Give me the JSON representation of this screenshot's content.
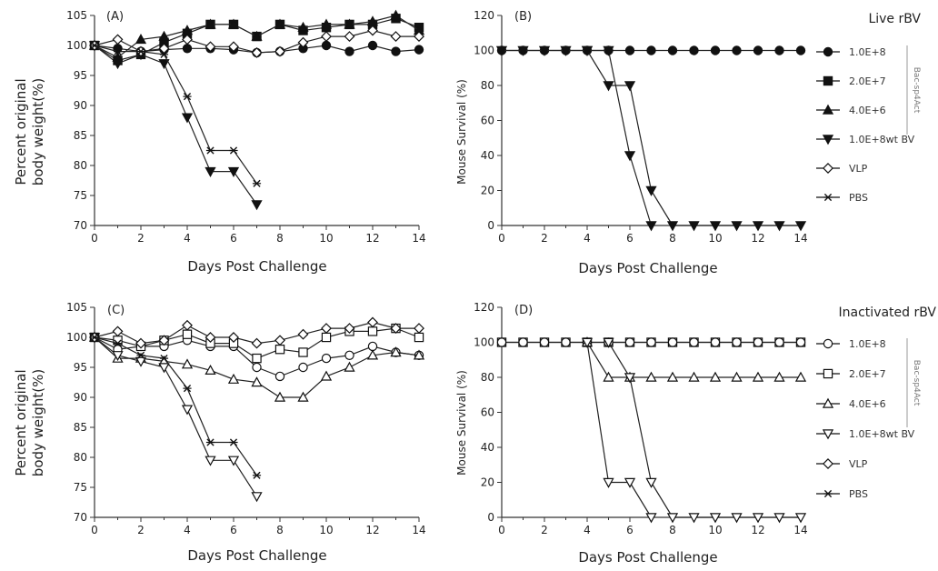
{
  "chart_data": [
    {
      "id": "A",
      "type": "line",
      "label": "(A)",
      "xlabel": "Days Post Challenge",
      "ylabel_lines": [
        "Percent original",
        "body weight(%)"
      ],
      "xlim": [
        0,
        14
      ],
      "ylim": [
        70,
        105
      ],
      "xticks": [
        0,
        2,
        4,
        6,
        8,
        10,
        12,
        14
      ],
      "yticks": [
        70,
        75,
        80,
        85,
        90,
        95,
        100,
        105
      ],
      "series": [
        {
          "marker": "circle-filled",
          "x": [
            0,
            1,
            2,
            3,
            4,
            5,
            6,
            7,
            8,
            9,
            10,
            11,
            12,
            13,
            14
          ],
          "y": [
            100,
            99.5,
            99,
            99.3,
            99.5,
            99.5,
            99.3,
            98.8,
            99,
            99.5,
            100,
            99,
            100,
            99,
            99.3
          ]
        },
        {
          "marker": "square-filled",
          "x": [
            0,
            1,
            2,
            3,
            4,
            5,
            6,
            7,
            8,
            9,
            10,
            11,
            12,
            13,
            14
          ],
          "y": [
            100,
            97.5,
            98.5,
            100.5,
            102,
            103.5,
            103.5,
            101.5,
            103.5,
            102.5,
            103,
            103.5,
            103.5,
            104.5,
            103
          ]
        },
        {
          "marker": "triangle-up-filled",
          "x": [
            0,
            1,
            2,
            3,
            4,
            5,
            6,
            7,
            8,
            9,
            10,
            11,
            12,
            13,
            14
          ],
          "y": [
            100,
            98,
            101,
            101.5,
            102.5,
            103.5,
            103.5,
            101.5,
            103.5,
            103,
            103.5,
            103.5,
            104,
            105,
            102.5
          ]
        },
        {
          "marker": "triangle-down-filled",
          "x": [
            0,
            1,
            2,
            3,
            4,
            5,
            6,
            7
          ],
          "y": [
            100,
            97,
            98.5,
            97,
            88,
            79,
            79,
            73.5
          ]
        },
        {
          "marker": "diamond-open",
          "x": [
            0,
            1,
            2,
            3,
            4,
            5,
            6,
            7,
            8,
            9,
            10,
            11,
            12,
            13,
            14
          ],
          "y": [
            100,
            101,
            99,
            99.5,
            101,
            99.8,
            99.8,
            98.8,
            99,
            100.5,
            101.5,
            101.5,
            102.5,
            101.5,
            101.5
          ]
        },
        {
          "marker": "star",
          "x": [
            0,
            1,
            2,
            3,
            4,
            5,
            6,
            7
          ],
          "y": [
            100,
            99,
            99,
            98.5,
            91.5,
            82.5,
            82.5,
            77
          ]
        }
      ]
    },
    {
      "id": "B",
      "type": "line",
      "label": "(B)",
      "xlabel": "Days Post Challenge",
      "ylabel_lines": [
        "Mouse Survival (%)"
      ],
      "xlim": [
        0,
        14
      ],
      "ylim": [
        0,
        120
      ],
      "xticks": [
        0,
        2,
        4,
        6,
        8,
        10,
        12,
        14
      ],
      "yticks": [
        0,
        20,
        40,
        60,
        80,
        100,
        120
      ],
      "series": [
        {
          "marker": "circle-filled",
          "x": [
            0,
            1,
            2,
            3,
            4,
            5,
            6,
            7,
            8,
            9,
            10,
            11,
            12,
            13,
            14
          ],
          "y": [
            100,
            100,
            100,
            100,
            100,
            100,
            100,
            100,
            100,
            100,
            100,
            100,
            100,
            100,
            100
          ]
        },
        {
          "marker": "triangle-down-filled",
          "x": [
            0,
            1,
            2,
            3,
            4,
            5,
            6,
            7,
            8,
            9,
            10,
            11,
            12,
            13,
            14
          ],
          "y": [
            100,
            100,
            100,
            100,
            100,
            80,
            80,
            20,
            0,
            0,
            0,
            0,
            0,
            0,
            0
          ]
        },
        {
          "marker": "triangle-down-filled",
          "x": [
            4,
            5,
            6,
            7
          ],
          "y": [
            100,
            100,
            40,
            0
          ]
        }
      ],
      "legend": {
        "title": "Live rBV",
        "bracket_label": "Bac-sp4Act",
        "entries": [
          {
            "marker": "circle-filled",
            "label": "1.0E+8"
          },
          {
            "marker": "square-filled",
            "label": "2.0E+7"
          },
          {
            "marker": "triangle-up-filled",
            "label": "4.0E+6"
          },
          {
            "marker": "triangle-down-filled",
            "label": "1.0E+8wt BV"
          },
          {
            "marker": "diamond-open",
            "label": "VLP"
          },
          {
            "marker": "star",
            "label": "PBS"
          }
        ]
      }
    },
    {
      "id": "C",
      "type": "line",
      "label": "(C)",
      "xlabel": "Days Post Challenge",
      "ylabel_lines": [
        "Percent original",
        "body weight(%)"
      ],
      "xlim": [
        0,
        14
      ],
      "ylim": [
        70,
        105
      ],
      "xticks": [
        0,
        2,
        4,
        6,
        8,
        10,
        12,
        14
      ],
      "yticks": [
        70,
        75,
        80,
        85,
        90,
        95,
        100,
        105
      ],
      "series": [
        {
          "marker": "circle-open",
          "x": [
            0,
            1,
            2,
            3,
            4,
            5,
            6,
            7,
            8,
            9,
            10,
            11,
            12,
            13,
            14
          ],
          "y": [
            100,
            98,
            98.5,
            98.5,
            99.5,
            98.5,
            98.5,
            95,
            93.5,
            95,
            96.5,
            97,
            98.5,
            97.5,
            97
          ]
        },
        {
          "marker": "square-open",
          "x": [
            0,
            1,
            2,
            3,
            4,
            5,
            6,
            7,
            8,
            9,
            10,
            11,
            12,
            13,
            14
          ],
          "y": [
            100,
            99.5,
            98.5,
            99.5,
            100.5,
            99,
            99,
            96.5,
            98,
            97.5,
            100,
            101,
            101,
            101.5,
            100
          ]
        },
        {
          "marker": "triangle-up-open",
          "x": [
            0,
            1,
            2,
            3,
            4,
            5,
            6,
            7,
            8,
            9,
            10,
            11,
            12,
            13,
            14
          ],
          "y": [
            100,
            96.5,
            96.5,
            96,
            95.5,
            94.5,
            93,
            92.5,
            90,
            90,
            93.5,
            95,
            97,
            97.5,
            97
          ]
        },
        {
          "marker": "triangle-down-open",
          "x": [
            0,
            1,
            2,
            3,
            4,
            5,
            6,
            7
          ],
          "y": [
            100,
            97,
            96,
            95,
            88,
            79.5,
            79.5,
            73.5
          ]
        },
        {
          "marker": "diamond-open",
          "x": [
            0,
            1,
            2,
            3,
            4,
            5,
            6,
            7,
            8,
            9,
            10,
            11,
            12,
            13,
            14
          ],
          "y": [
            100,
            101,
            99,
            99.5,
            102,
            100,
            100,
            99,
            99.5,
            100.5,
            101.5,
            101.5,
            102.5,
            101.5,
            101.5
          ]
        },
        {
          "marker": "star",
          "x": [
            0,
            1,
            2,
            3,
            4,
            5,
            6,
            7
          ],
          "y": [
            100,
            99,
            97,
            96.5,
            91.5,
            82.5,
            82.5,
            77
          ]
        }
      ]
    },
    {
      "id": "D",
      "type": "line",
      "label": "(D)",
      "xlabel": "Days Post Challenge",
      "ylabel_lines": [
        "Mouse Survival (%)"
      ],
      "xlim": [
        0,
        14
      ],
      "ylim": [
        0,
        120
      ],
      "xticks": [
        0,
        2,
        4,
        6,
        8,
        10,
        12,
        14
      ],
      "yticks": [
        0,
        20,
        40,
        60,
        80,
        100,
        120
      ],
      "series": [
        {
          "marker": "square-open",
          "x": [
            0,
            1,
            2,
            3,
            4,
            5,
            6,
            7,
            8,
            9,
            10,
            11,
            12,
            13,
            14
          ],
          "y": [
            100,
            100,
            100,
            100,
            100,
            100,
            100,
            100,
            100,
            100,
            100,
            100,
            100,
            100,
            100
          ]
        },
        {
          "marker": "circle-open",
          "x": [
            0,
            1,
            2,
            3,
            4,
            5,
            6,
            7,
            8,
            9,
            10,
            11,
            12,
            13,
            14
          ],
          "y": [
            100,
            100,
            100,
            100,
            100,
            100,
            100,
            100,
            100,
            100,
            100,
            100,
            100,
            100,
            100
          ]
        },
        {
          "marker": "triangle-up-open",
          "x": [
            4,
            5,
            6,
            7,
            8,
            9,
            10,
            11,
            12,
            13,
            14
          ],
          "y": [
            100,
            80,
            80,
            80,
            80,
            80,
            80,
            80,
            80,
            80,
            80
          ]
        },
        {
          "marker": "triangle-down-open",
          "x": [
            4,
            5,
            6,
            7
          ],
          "y": [
            100,
            20,
            20,
            0
          ]
        },
        {
          "marker": "triangle-down-open",
          "x": [
            5,
            6,
            7,
            8,
            9,
            10,
            11,
            12,
            13,
            14
          ],
          "y": [
            100,
            80,
            20,
            0,
            0,
            0,
            0,
            0,
            0,
            0
          ]
        }
      ],
      "legend": {
        "title": "Inactivated rBV",
        "bracket_label": "Bac-sp4Act",
        "entries": [
          {
            "marker": "circle-open",
            "label": "1.0E+8"
          },
          {
            "marker": "square-open",
            "label": "2.0E+7"
          },
          {
            "marker": "triangle-up-open",
            "label": "4.0E+6"
          },
          {
            "marker": "triangle-down-open",
            "label": "1.0E+8wt BV"
          },
          {
            "marker": "diamond-open",
            "label": "VLP"
          },
          {
            "marker": "star",
            "label": "PBS"
          }
        ]
      }
    }
  ]
}
